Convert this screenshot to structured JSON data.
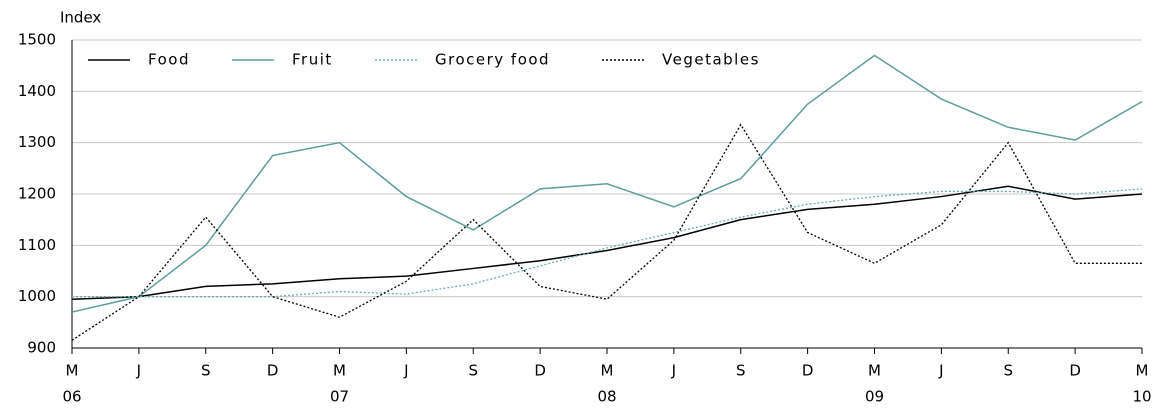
{
  "chart_data": {
    "type": "line",
    "y_label": "Index",
    "categories": [
      "M",
      "J",
      "S",
      "D",
      "M",
      "J",
      "S",
      "D",
      "M",
      "J",
      "S",
      "D",
      "M",
      "J",
      "S",
      "D",
      "M"
    ],
    "years": [
      "06",
      null,
      null,
      null,
      "07",
      null,
      null,
      null,
      "08",
      null,
      null,
      null,
      "09",
      null,
      null,
      null,
      "10"
    ],
    "ylim": [
      900,
      1500
    ],
    "yticks": [
      900,
      1000,
      1100,
      1200,
      1300,
      1400,
      1500
    ],
    "grid": true,
    "legend": "top-left",
    "series": [
      {
        "name": "Food",
        "color": "#000000",
        "dash": "solid",
        "values": [
          995,
          1000,
          1020,
          1025,
          1035,
          1040,
          1055,
          1070,
          1090,
          1115,
          1150,
          1170,
          1180,
          1195,
          1215,
          1190,
          1200
        ]
      },
      {
        "name": "Fruit",
        "color": "#5f9c9c",
        "dash": "solid",
        "values": [
          970,
          1000,
          1100,
          1275,
          1300,
          1195,
          1130,
          1210,
          1220,
          1175,
          1230,
          1375,
          1470,
          1385,
          1330,
          1305,
          1380
        ]
      },
      {
        "name": "Grocery food",
        "color": "#6aaeb0",
        "dash": "dotted",
        "values": [
          1000,
          1000,
          1000,
          1000,
          1010,
          1005,
          1025,
          1060,
          1095,
          1125,
          1155,
          1180,
          1195,
          1205,
          1205,
          1200,
          1210
        ]
      },
      {
        "name": "Vegetables",
        "color": "#000000",
        "dash": "dotted",
        "values": [
          915,
          1000,
          1155,
          1000,
          960,
          1030,
          1150,
          1020,
          995,
          1110,
          1335,
          1125,
          1065,
          1140,
          1300,
          1065,
          1065
        ]
      }
    ]
  }
}
